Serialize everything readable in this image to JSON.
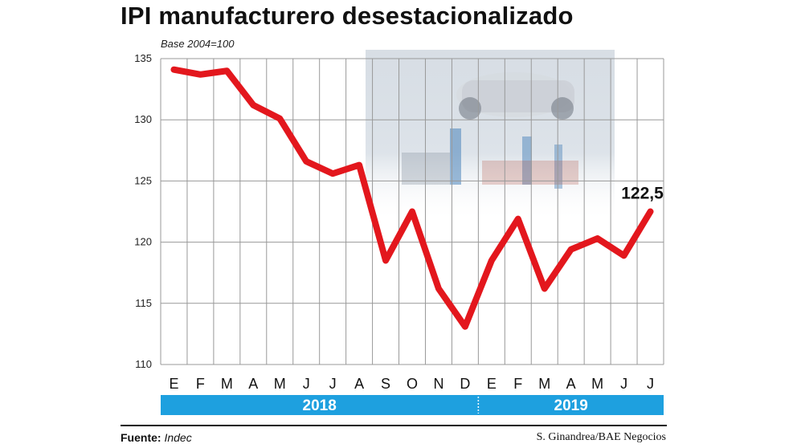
{
  "chart_data": {
    "type": "line",
    "title": "IPI manufacturero desestacionalizado",
    "subtitle": "Base 2004=100",
    "categories": [
      "E",
      "F",
      "M",
      "A",
      "M",
      "J",
      "J",
      "A",
      "S",
      "O",
      "N",
      "D",
      "E",
      "F",
      "M",
      "A",
      "M",
      "J",
      "J"
    ],
    "years": [
      {
        "label": "2018",
        "span": 12
      },
      {
        "label": "2019",
        "span": 7
      }
    ],
    "series": [
      {
        "name": "",
        "values": [
          134.1,
          133.7,
          134.0,
          131.2,
          130.1,
          126.6,
          125.6,
          126.3,
          118.5,
          122.5,
          116.2,
          113.1,
          118.5,
          121.9,
          116.2,
          119.4,
          120.3,
          118.9,
          122.5
        ],
        "color": "#e3171d"
      }
    ],
    "ylim": [
      110,
      135
    ],
    "yticks": [
      110,
      115,
      120,
      125,
      130,
      135
    ],
    "last_value_label": "122,5",
    "grid": true,
    "colors": {
      "line": "#e3171d",
      "year_band": "#1ea0df",
      "grid": "#999999"
    }
  },
  "footer": {
    "source_label": "Fuente:",
    "source_value": "Indec",
    "credit": "S. Ginandrea/BAE Negocios"
  }
}
